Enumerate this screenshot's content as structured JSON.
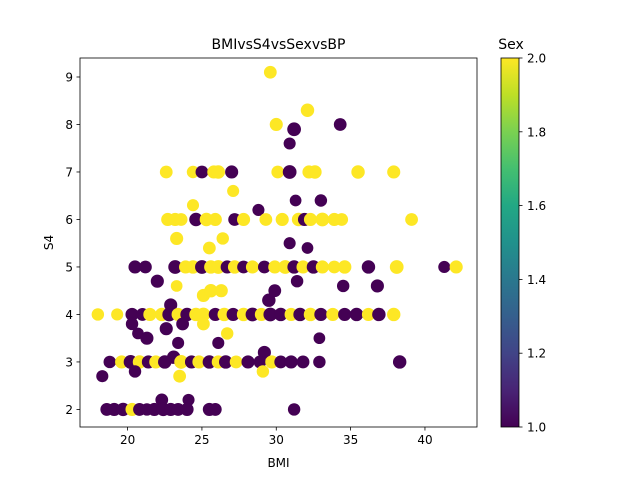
{
  "chart_data": {
    "type": "scatter",
    "title": "BMIvsS4vsSexvsBP",
    "xlabel": "BMI",
    "ylabel": "S4",
    "xlim": [
      16.8,
      43.5
    ],
    "ylim": [
      1.63,
      9.4
    ],
    "xticks": [
      20,
      25,
      30,
      35,
      40
    ],
    "yticks": [
      2,
      3,
      4,
      5,
      6,
      7,
      8,
      9
    ],
    "grid": false,
    "colorbar": {
      "label": "Sex",
      "colormap": "viridis",
      "range": [
        1.0,
        2.0
      ],
      "ticks": [
        1.0,
        1.2,
        1.4,
        1.6,
        1.8,
        2.0
      ],
      "tick_labels": [
        "1.0",
        "1.2",
        "1.4",
        "1.6",
        "1.8",
        "2.0"
      ]
    },
    "colors": {
      "sex_1": "#440154",
      "sex_2": "#fde725"
    },
    "marker_size_encodes": "BP",
    "points": [
      [
        29.6,
        9.1,
        2,
        95
      ],
      [
        30.0,
        8.0,
        2,
        100
      ],
      [
        32.1,
        8.3,
        2,
        105
      ],
      [
        31.2,
        7.9,
        1,
        110
      ],
      [
        34.3,
        8.0,
        1,
        95
      ],
      [
        30.9,
        7.6,
        1,
        85
      ],
      [
        22.6,
        7.0,
        2,
        95
      ],
      [
        24.4,
        7.0,
        2,
        90
      ],
      [
        25.0,
        7.0,
        1,
        95
      ],
      [
        25.8,
        7.0,
        2,
        100
      ],
      [
        26.1,
        7.0,
        2,
        105
      ],
      [
        27.0,
        7.0,
        1,
        100
      ],
      [
        30.1,
        7.0,
        2,
        95
      ],
      [
        30.9,
        7.0,
        1,
        110
      ],
      [
        32.2,
        7.0,
        2,
        100
      ],
      [
        32.6,
        7.0,
        2,
        105
      ],
      [
        35.5,
        7.0,
        2,
        105
      ],
      [
        37.9,
        7.0,
        2,
        100
      ],
      [
        27.1,
        6.6,
        2,
        85
      ],
      [
        31.3,
        6.4,
        1,
        80
      ],
      [
        33.0,
        6.4,
        1,
        90
      ],
      [
        24.4,
        6.3,
        2,
        85
      ],
      [
        28.8,
        6.2,
        1,
        85
      ],
      [
        22.7,
        6.0,
        2,
        100
      ],
      [
        23.2,
        6.0,
        2,
        100
      ],
      [
        23.6,
        6.0,
        2,
        95
      ],
      [
        24.6,
        6.0,
        1,
        105
      ],
      [
        25.3,
        6.0,
        2,
        105
      ],
      [
        25.9,
        6.0,
        2,
        100
      ],
      [
        27.2,
        6.0,
        1,
        95
      ],
      [
        27.8,
        6.0,
        2,
        100
      ],
      [
        29.3,
        6.0,
        2,
        95
      ],
      [
        30.4,
        6.0,
        2,
        100
      ],
      [
        31.5,
        6.0,
        2,
        105
      ],
      [
        31.9,
        6.0,
        1,
        100
      ],
      [
        32.3,
        6.0,
        2,
        100
      ],
      [
        33.1,
        6.0,
        2,
        110
      ],
      [
        33.9,
        6.0,
        2,
        100
      ],
      [
        34.4,
        6.0,
        2,
        95
      ],
      [
        39.1,
        6.0,
        2,
        95
      ],
      [
        23.3,
        5.6,
        2,
        100
      ],
      [
        26.4,
        5.6,
        2,
        90
      ],
      [
        30.9,
        5.5,
        1,
        85
      ],
      [
        32.1,
        5.4,
        1,
        80
      ],
      [
        25.5,
        5.4,
        2,
        95
      ],
      [
        20.5,
        5.0,
        1,
        100
      ],
      [
        21.2,
        5.0,
        1,
        95
      ],
      [
        23.2,
        5.0,
        1,
        110
      ],
      [
        23.9,
        5.0,
        2,
        100
      ],
      [
        24.4,
        5.0,
        2,
        105
      ],
      [
        25.0,
        5.0,
        1,
        110
      ],
      [
        25.6,
        5.0,
        2,
        105
      ],
      [
        26.1,
        5.0,
        2,
        110
      ],
      [
        26.7,
        5.0,
        1,
        100
      ],
      [
        27.2,
        5.0,
        2,
        105
      ],
      [
        27.8,
        5.0,
        1,
        95
      ],
      [
        28.4,
        5.0,
        2,
        100
      ],
      [
        29.2,
        5.0,
        1,
        95
      ],
      [
        29.9,
        5.0,
        2,
        100
      ],
      [
        30.6,
        5.0,
        2,
        110
      ],
      [
        31.2,
        5.0,
        1,
        105
      ],
      [
        31.8,
        5.0,
        2,
        100
      ],
      [
        32.5,
        5.0,
        1,
        105
      ],
      [
        33.1,
        5.0,
        2,
        100
      ],
      [
        33.9,
        5.0,
        2,
        95
      ],
      [
        34.6,
        5.0,
        2,
        105
      ],
      [
        36.2,
        5.0,
        1,
        105
      ],
      [
        38.1,
        5.0,
        2,
        110
      ],
      [
        41.3,
        5.0,
        1,
        85
      ],
      [
        42.1,
        5.0,
        2,
        100
      ],
      [
        22.0,
        4.7,
        1,
        100
      ],
      [
        23.3,
        4.6,
        2,
        80
      ],
      [
        25.1,
        4.4,
        2,
        100
      ],
      [
        25.6,
        4.5,
        2,
        105
      ],
      [
        26.3,
        4.5,
        2,
        100
      ],
      [
        31.4,
        4.7,
        1,
        90
      ],
      [
        34.5,
        4.6,
        1,
        90
      ],
      [
        36.8,
        4.6,
        1,
        100
      ],
      [
        29.5,
        4.3,
        1,
        105
      ],
      [
        22.9,
        4.2,
        1,
        100
      ],
      [
        29.9,
        4.5,
        1,
        95
      ],
      [
        18.0,
        4.0,
        2,
        90
      ],
      [
        19.3,
        4.0,
        2,
        85
      ],
      [
        20.3,
        4.0,
        1,
        100
      ],
      [
        21.0,
        4.0,
        1,
        95
      ],
      [
        21.5,
        4.0,
        2,
        100
      ],
      [
        22.3,
        4.0,
        2,
        105
      ],
      [
        22.8,
        4.0,
        1,
        110
      ],
      [
        23.4,
        4.0,
        2,
        100
      ],
      [
        24.0,
        4.0,
        1,
        105
      ],
      [
        24.6,
        4.0,
        2,
        105
      ],
      [
        25.1,
        4.0,
        2,
        110
      ],
      [
        25.9,
        4.0,
        1,
        100
      ],
      [
        26.5,
        4.0,
        2,
        105
      ],
      [
        27.1,
        4.0,
        1,
        100
      ],
      [
        27.8,
        4.0,
        2,
        105
      ],
      [
        28.4,
        4.0,
        1,
        110
      ],
      [
        29.0,
        4.0,
        2,
        100
      ],
      [
        29.6,
        4.0,
        1,
        110
      ],
      [
        30.3,
        4.0,
        1,
        105
      ],
      [
        31.0,
        4.0,
        2,
        100
      ],
      [
        31.6,
        4.0,
        1,
        105
      ],
      [
        32.3,
        4.0,
        2,
        105
      ],
      [
        33.0,
        4.0,
        1,
        100
      ],
      [
        33.8,
        4.0,
        2,
        100
      ],
      [
        34.6,
        4.0,
        1,
        100
      ],
      [
        35.4,
        4.0,
        1,
        105
      ],
      [
        36.2,
        4.0,
        2,
        100
      ],
      [
        36.9,
        4.0,
        1,
        105
      ],
      [
        37.9,
        4.0,
        2,
        105
      ],
      [
        20.3,
        3.8,
        1,
        90
      ],
      [
        22.6,
        3.7,
        1,
        100
      ],
      [
        23.7,
        3.8,
        1,
        95
      ],
      [
        25.1,
        3.8,
        2,
        95
      ],
      [
        26.7,
        3.6,
        2,
        90
      ],
      [
        20.7,
        3.6,
        1,
        80
      ],
      [
        21.3,
        3.5,
        1,
        100
      ],
      [
        32.9,
        3.5,
        1,
        80
      ],
      [
        23.4,
        3.4,
        1,
        85
      ],
      [
        26.1,
        3.4,
        1,
        85
      ],
      [
        29.2,
        3.2,
        1,
        100
      ],
      [
        23.1,
        3.1,
        1,
        105
      ],
      [
        18.8,
        3.0,
        1,
        90
      ],
      [
        19.6,
        3.0,
        2,
        100
      ],
      [
        20.2,
        3.0,
        1,
        110
      ],
      [
        20.8,
        3.0,
        2,
        105
      ],
      [
        21.4,
        3.0,
        1,
        100
      ],
      [
        21.9,
        3.0,
        2,
        100
      ],
      [
        22.5,
        3.0,
        1,
        105
      ],
      [
        23.6,
        3.0,
        2,
        110
      ],
      [
        24.3,
        3.0,
        1,
        100
      ],
      [
        24.8,
        3.0,
        2,
        100
      ],
      [
        25.5,
        3.0,
        1,
        105
      ],
      [
        26.1,
        3.0,
        2,
        100
      ],
      [
        26.6,
        3.0,
        1,
        105
      ],
      [
        27.3,
        3.0,
        2,
        95
      ],
      [
        28.1,
        3.0,
        1,
        100
      ],
      [
        28.9,
        3.0,
        1,
        95
      ],
      [
        29.7,
        3.0,
        2,
        100
      ],
      [
        30.3,
        3.0,
        1,
        95
      ],
      [
        31.0,
        3.0,
        1,
        100
      ],
      [
        31.8,
        3.0,
        1,
        95
      ],
      [
        32.9,
        3.0,
        1,
        90
      ],
      [
        38.3,
        3.0,
        1,
        105
      ],
      [
        18.3,
        2.7,
        1,
        85
      ],
      [
        20.5,
        2.8,
        1,
        90
      ],
      [
        23.5,
        2.7,
        2,
        95
      ],
      [
        29.1,
        2.8,
        2,
        90
      ],
      [
        22.3,
        2.2,
        1,
        95
      ],
      [
        24.1,
        2.2,
        1,
        85
      ],
      [
        18.6,
        2.0,
        1,
        95
      ],
      [
        19.1,
        2.0,
        1,
        100
      ],
      [
        19.7,
        2.0,
        1,
        105
      ],
      [
        20.3,
        2.0,
        2,
        100
      ],
      [
        20.8,
        2.0,
        1,
        95
      ],
      [
        21.3,
        2.0,
        1,
        90
      ],
      [
        21.8,
        2.0,
        1,
        100
      ],
      [
        22.4,
        2.0,
        1,
        105
      ],
      [
        22.9,
        2.0,
        1,
        100
      ],
      [
        23.4,
        2.0,
        1,
        95
      ],
      [
        24.0,
        2.0,
        1,
        100
      ],
      [
        25.5,
        2.0,
        1,
        100
      ],
      [
        25.9,
        2.0,
        1,
        95
      ],
      [
        31.2,
        2.0,
        1,
        90
      ]
    ]
  }
}
